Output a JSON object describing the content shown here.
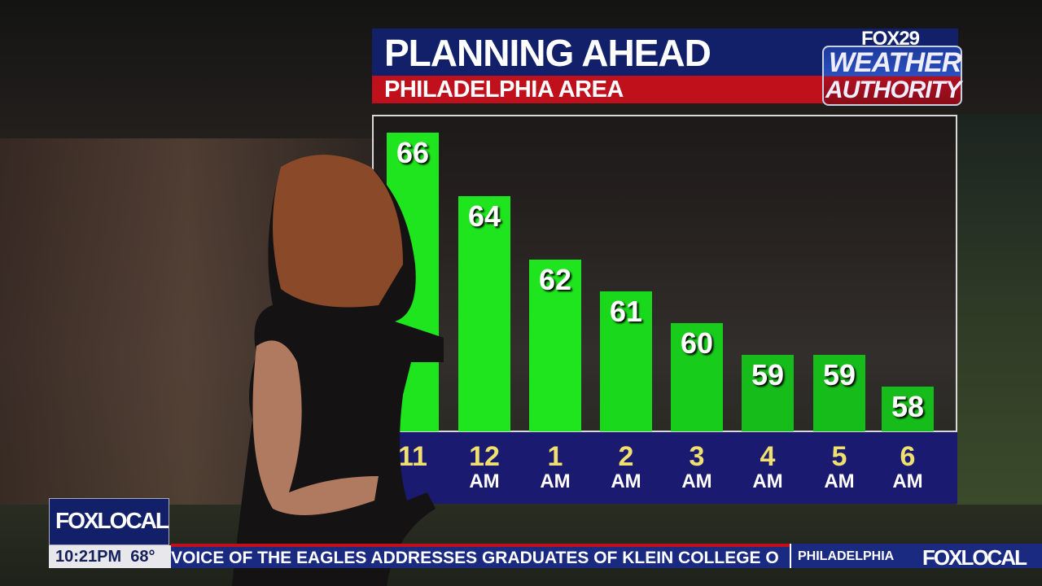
{
  "header": {
    "title": "PLANNING AHEAD",
    "subtitle": "PHILADELPHIA AREA"
  },
  "logo": {
    "brand": "FOX29",
    "line1": "WEATHER",
    "line2": "AUTHORITY"
  },
  "chart_data": {
    "type": "bar",
    "title": "PLANNING AHEAD",
    "subtitle": "PHILADELPHIA AREA",
    "categories": [
      {
        "hour": "11",
        "period": ""
      },
      {
        "hour": "12",
        "period": "AM"
      },
      {
        "hour": "1",
        "period": "AM"
      },
      {
        "hour": "2",
        "period": "AM"
      },
      {
        "hour": "3",
        "period": "AM"
      },
      {
        "hour": "4",
        "period": "AM"
      },
      {
        "hour": "5",
        "period": "AM"
      },
      {
        "hour": "6",
        "period": "AM"
      }
    ],
    "values": [
      66,
      64,
      62,
      61,
      60,
      59,
      59,
      58
    ],
    "colors": [
      "#1ee51e",
      "#1ee51e",
      "#1ee51e",
      "#1ad81c",
      "#18cc1c",
      "#16bd1a",
      "#16bd1a",
      "#16bd1a"
    ],
    "grid": false
  },
  "bug": {
    "logo": "FOXLOCAL",
    "time": "10:21PM",
    "temp": "68°"
  },
  "ticker": {
    "headline": "VOICE OF THE EAGLES ADDRESSES GRADUATES OF KLEIN COLLEGE O",
    "location": "PHILADELPHIA",
    "logo": "FOXLOCAL"
  }
}
